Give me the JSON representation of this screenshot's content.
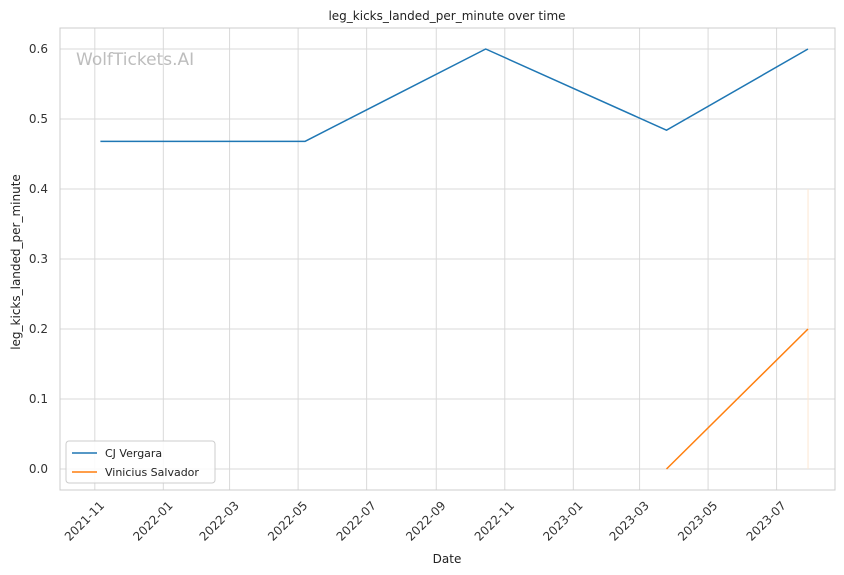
{
  "chart_data": {
    "type": "line",
    "title": "leg_kicks_landed_per_minute over time",
    "xlabel": "Date",
    "ylabel": "leg_kicks_landed_per_minute",
    "watermark": "WolfTickets.AI",
    "x_ticks": [
      "2021-11",
      "2022-01",
      "2022-03",
      "2022-05",
      "2022-07",
      "2022-09",
      "2022-11",
      "2023-01",
      "2023-03",
      "2023-05",
      "2023-07"
    ],
    "y_ticks": [
      "0.0",
      "0.1",
      "0.2",
      "0.3",
      "0.4",
      "0.5",
      "0.6"
    ],
    "xlim": [
      "2021-10-01",
      "2023-08-22"
    ],
    "ylim": [
      -0.03,
      0.63
    ],
    "grid": true,
    "legend_position": "bottom-left",
    "series": [
      {
        "name": "CJ Vergara",
        "color": "#1f77b4",
        "points": [
          {
            "date": "2021-11-06",
            "value": 0.468
          },
          {
            "date": "2022-05-07",
            "value": 0.468
          },
          {
            "date": "2022-10-15",
            "value": 0.6
          },
          {
            "date": "2023-03-25",
            "value": 0.484
          },
          {
            "date": "2023-07-29",
            "value": 0.6
          }
        ]
      },
      {
        "name": "Vinicius Salvador",
        "color": "#ff7f0e",
        "points": [
          {
            "date": "2023-03-25",
            "value": 0.0
          },
          {
            "date": "2023-07-29",
            "value": 0.2
          }
        ]
      }
    ],
    "annotation_line": {
      "date": "2023-07-29",
      "from": 0.0,
      "to": 0.4,
      "color": "#fde7d3"
    }
  }
}
